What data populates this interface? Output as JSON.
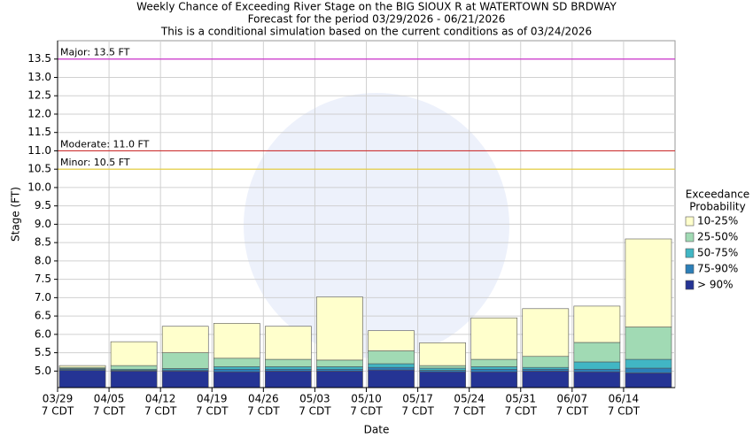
{
  "chart_data": {
    "type": "bar",
    "title": [
      "Weekly Chance of Exceeding River Stage on the BIG SIOUX R at WATERTOWN SD BRDWAY",
      "Forecast for the period 03/29/2026 - 06/21/2026",
      "This is a conditional simulation based on the current conditions as of 03/24/2026"
    ],
    "xlabel": "Date",
    "ylabel": "Stage (FT)",
    "categories": [
      "03/29",
      "04/05",
      "04/12",
      "04/19",
      "04/26",
      "05/03",
      "05/10",
      "05/17",
      "05/24",
      "05/31",
      "06/07",
      "06/14"
    ],
    "category_sublabel": "7 CDT",
    "legend_title": [
      "Exceedance",
      "Probability"
    ],
    "series": [
      {
        "name": "10-25%",
        "color": "#ffffcc",
        "values": [
          5.15,
          5.8,
          6.22,
          6.3,
          6.22,
          7.02,
          6.1,
          5.77,
          6.45,
          6.7,
          6.77,
          8.6
        ]
      },
      {
        "name": "25-50%",
        "color": "#a1dab4",
        "values": [
          5.1,
          5.15,
          5.5,
          5.35,
          5.32,
          5.3,
          5.55,
          5.15,
          5.32,
          5.4,
          5.78,
          6.2
        ]
      },
      {
        "name": "50-75%",
        "color": "#41b6c4",
        "values": [
          5.07,
          5.05,
          5.07,
          5.12,
          5.12,
          5.12,
          5.2,
          5.08,
          5.12,
          5.1,
          5.25,
          5.32
        ]
      },
      {
        "name": "75-90%",
        "color": "#2c7fb8",
        "values": [
          5.05,
          5.02,
          5.03,
          5.05,
          5.05,
          5.05,
          5.1,
          5.02,
          5.05,
          5.05,
          5.05,
          5.08
        ]
      },
      {
        "name": "> 90%",
        "color": "#253494",
        "values": [
          5.02,
          5.0,
          5.0,
          4.98,
          5.0,
          5.0,
          5.03,
          4.98,
          4.98,
          5.0,
          4.98,
          4.95
        ]
      }
    ],
    "thresholds": [
      {
        "label": "Major: 13.5 FT",
        "value": 13.5,
        "color": "#cc33cc"
      },
      {
        "label": "Moderate: 11.0 FT",
        "value": 11.0,
        "color": "#cc3333"
      },
      {
        "label": "Minor: 10.5 FT",
        "value": 10.5,
        "color": "#e6cc33"
      }
    ],
    "ylim": [
      4.55,
      14.0
    ],
    "yticks": [
      {
        "value": 5,
        "label": "5.0"
      },
      {
        "value": 5.5,
        "label": "5.5"
      },
      {
        "value": 6,
        "label": "6.0"
      },
      {
        "value": 6.5,
        "label": "6.5"
      },
      {
        "value": 7,
        "label": "7.0"
      },
      {
        "value": 7.5,
        "label": "7.5"
      },
      {
        "value": 8,
        "label": "8.0"
      },
      {
        "value": 8.5,
        "label": "8.5"
      },
      {
        "value": 9,
        "label": "9.0"
      },
      {
        "value": 9.5,
        "label": "9.5"
      },
      {
        "value": 10,
        "label": "10.0"
      },
      {
        "value": 10.5,
        "label": "10.5"
      },
      {
        "value": 11,
        "label": "11.0"
      },
      {
        "value": 11.5,
        "label": "11.5"
      },
      {
        "value": 12,
        "label": "12.0"
      },
      {
        "value": 12.5,
        "label": "12.5"
      },
      {
        "value": 13,
        "label": "13.0"
      },
      {
        "value": 13.5,
        "label": "13.5"
      }
    ],
    "grid": true
  }
}
